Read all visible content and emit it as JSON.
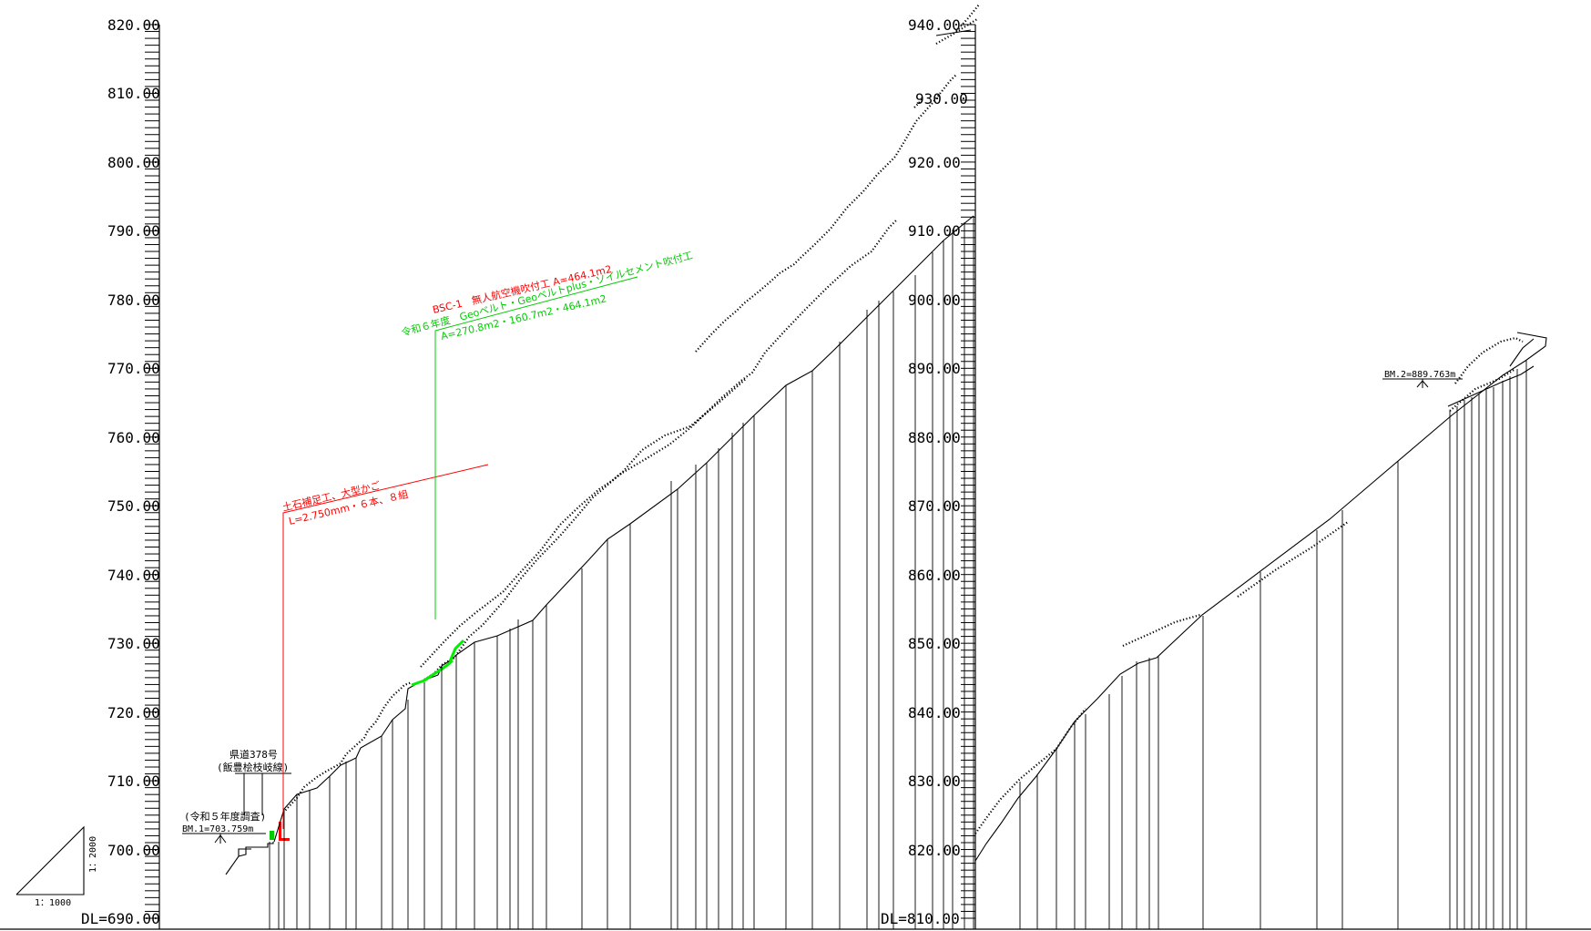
{
  "profile": {
    "left_panel": {
      "elevations": [
        "820.00",
        "810.00",
        "800.00",
        "790.00",
        "780.00",
        "770.00",
        "760.00",
        "750.00",
        "740.00",
        "730.00",
        "720.00",
        "710.00",
        "700.00"
      ],
      "datum_label": "DL=690.00"
    },
    "right_panel": {
      "elevations": [
        "940.00",
        "930.00",
        "920.00",
        "910.00",
        "900.00",
        "890.00",
        "880.00",
        "870.00",
        "860.00",
        "850.00",
        "840.00",
        "830.00",
        "820.00"
      ],
      "datum_label": "DL=810.00"
    },
    "scale": {
      "vertical": "1：2000",
      "horizontal": "1：1000"
    },
    "annotations": {
      "road_name_1": "県道378号",
      "road_name_2": "(飯豊桧枝岐線)",
      "survey_year": "(令和５年度調査)",
      "bm1": "BM.1=703.759m",
      "bm2": "BM.2=889.763m",
      "retaining_line1": "土石補足工、大型かご",
      "retaining_line2": "L=2.750mm・６本、８組",
      "spray_red": "BSC-1　無人航空機吹付工 A=464.1m2",
      "spray_green_1": "令和６年度　Geoベルト・Geoベルトplus・ソイルセメント吹付工",
      "spray_green_2": "A=270.8m2・160.7m2・464.1m2"
    },
    "colors": {
      "line": "#000000",
      "red": "#ff0000",
      "green": "#00cc00",
      "background": "#ffffff"
    }
  }
}
